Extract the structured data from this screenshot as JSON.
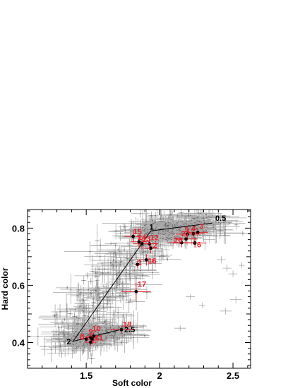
{
  "chart_data": {
    "type": "scatter",
    "xlabel": "Soft color",
    "ylabel": "Hard color",
    "xlim": [
      1.1,
      2.62
    ],
    "ylim": [
      0.31,
      0.865
    ],
    "x_ticks": [
      1.5,
      2,
      2.5
    ],
    "y_ticks": [
      0.4,
      0.6,
      0.8
    ],
    "x_tick_labels": [
      "1.5",
      "2",
      "2.5"
    ],
    "y_tick_labels": [
      "0.4",
      "0.6",
      "0.8"
    ],
    "grid": false,
    "legend": "none",
    "colors": {
      "cloud": "#a8a8a8",
      "cloud_dark": "#6e6e6e",
      "highlight": "#e8202a",
      "track": "#000000"
    },
    "track": {
      "vertices": [
        {
          "label": "0.5",
          "x": 2.36,
          "y": 0.818
        },
        {
          "label": "1",
          "x": 1.94,
          "y": 0.79
        },
        {
          "label": "2",
          "x": 1.41,
          "y": 0.404
        },
        {
          "label": "2.5",
          "x": 1.74,
          "y": 0.446
        }
      ]
    },
    "labeled_points": [
      {
        "label": "1",
        "x": 1.85,
        "y": 0.673,
        "xerr": 0.02,
        "yerr": 0.014
      },
      {
        "label": "2",
        "x": 1.94,
        "y": 0.73,
        "xerr": 0.05,
        "yerr": 0.018
      },
      {
        "label": "3",
        "x": 2.26,
        "y": 0.785,
        "xerr": 0.07,
        "yerr": 0.016
      },
      {
        "label": "4",
        "x": 2.23,
        "y": 0.78,
        "xerr": 0.07,
        "yerr": 0.016
      },
      {
        "label": "5",
        "x": 2.19,
        "y": 0.779,
        "xerr": 0.08,
        "yerr": 0.016
      },
      {
        "label": "6",
        "x": 2.24,
        "y": 0.748,
        "xerr": 0.08,
        "yerr": 0.016
      },
      {
        "label": "7",
        "x": 1.53,
        "y": 0.401,
        "xerr": 0.04,
        "yerr": 0.012
      },
      {
        "label": "8",
        "x": 1.5,
        "y": 0.412,
        "xerr": 0.04,
        "yerr": 0.012
      },
      {
        "label": "9",
        "x": 1.53,
        "y": 0.418,
        "xerr": 0.04,
        "yerr": 0.012
      },
      {
        "label": "10",
        "x": 1.55,
        "y": 0.422,
        "xerr": 0.04,
        "yerr": 0.012
      },
      {
        "label": "11",
        "x": 1.54,
        "y": 0.412,
        "xerr": 0.04,
        "yerr": 0.012
      },
      {
        "label": "12",
        "x": 1.93,
        "y": 0.745,
        "xerr": 0.06,
        "yerr": 0.02
      },
      {
        "label": "13",
        "x": 1.88,
        "y": 0.745,
        "xerr": 0.06,
        "yerr": 0.02
      },
      {
        "label": "14",
        "x": 1.86,
        "y": 0.752,
        "xerr": 0.06,
        "yerr": 0.02
      },
      {
        "label": "15",
        "x": 1.82,
        "y": 0.771,
        "xerr": 0.06,
        "yerr": 0.02
      },
      {
        "label": "16",
        "x": 1.91,
        "y": 0.689,
        "xerr": 0.05,
        "yerr": 0.02
      },
      {
        "label": "17",
        "x": 1.84,
        "y": 0.578,
        "xerr": 0.1,
        "yerr": 0.03
      },
      {
        "label": "18",
        "x": 1.74,
        "y": 0.445,
        "xerr": 0.08,
        "yerr": 0.012
      },
      {
        "label": "26",
        "x": 2.15,
        "y": 0.749,
        "xerr": 0.09,
        "yerr": 0.016
      },
      {
        "label": "27",
        "x": 2.18,
        "y": 0.762,
        "xerr": 0.08,
        "yerr": 0.016
      }
    ]
  }
}
